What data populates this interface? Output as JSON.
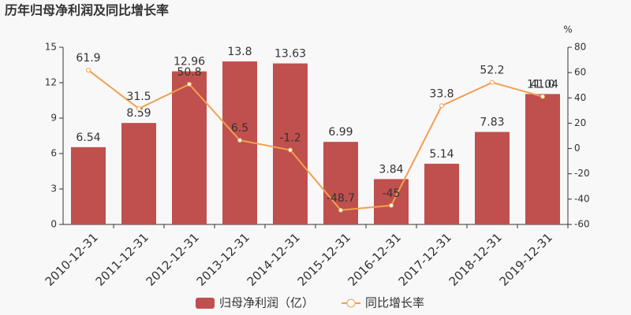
{
  "chart_data": {
    "type": "bar",
    "title": "历年归母净利润及同比增长率",
    "y2_label": "%",
    "categories": [
      "2010-12-31",
      "2011-12-31",
      "2012-12-31",
      "2013-12-31",
      "2014-12-31",
      "2015-12-31",
      "2016-12-31",
      "2017-12-31",
      "2018-12-31",
      "2019-12-31"
    ],
    "series": [
      {
        "name": "归母净利润（亿）",
        "type": "bar",
        "color": "#c0504d",
        "axis": "y",
        "values": [
          6.54,
          8.59,
          12.96,
          13.8,
          13.63,
          6.99,
          3.84,
          5.14,
          7.83,
          11.04
        ]
      },
      {
        "name": "同比增长率",
        "type": "line",
        "color": "#f0a050",
        "axis": "y2",
        "values": [
          61.9,
          31.5,
          50.8,
          6.5,
          -1.2,
          -48.7,
          -45,
          33.8,
          52.2,
          41.0
        ],
        "value_labels": [
          "61.9",
          "31.5",
          "50.8",
          "6.5",
          "-1.2",
          "-48.7",
          "-45",
          "33.8",
          "52.2",
          "41.0"
        ]
      }
    ],
    "ylim": [
      0,
      15
    ],
    "yticks": [
      0,
      3,
      6,
      9,
      12,
      15
    ],
    "y2lim": [
      -60,
      80
    ],
    "y2ticks": [
      -60,
      -40,
      -20,
      0,
      20,
      40,
      60,
      80
    ],
    "legend": "bottom"
  }
}
